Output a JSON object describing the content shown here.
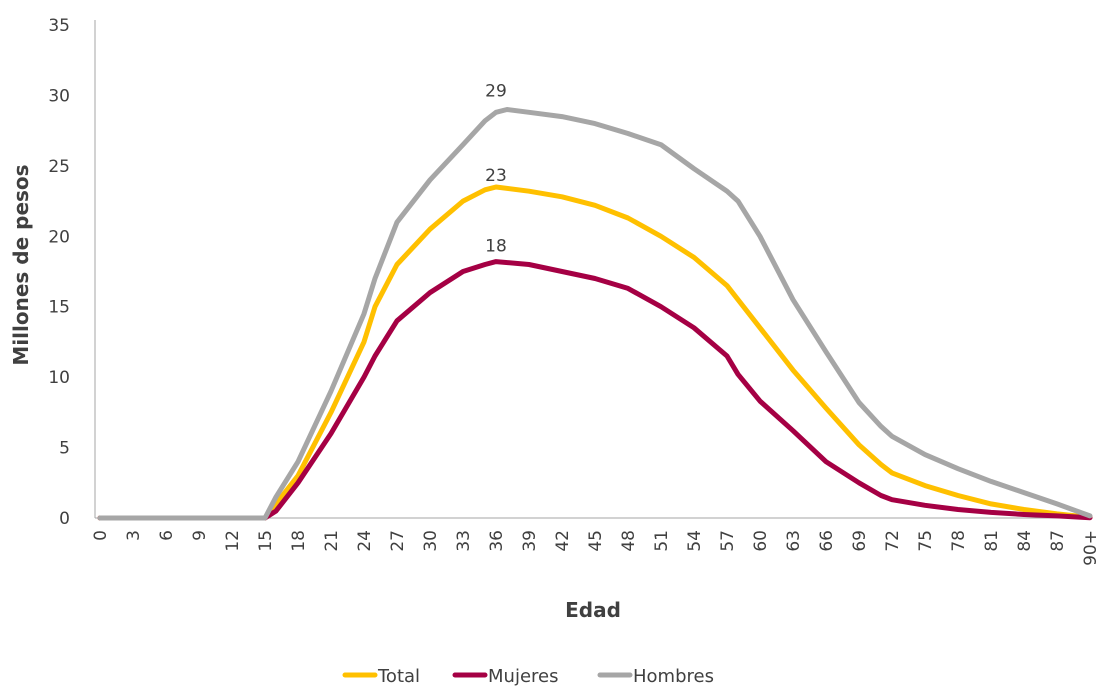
{
  "chart_data": {
    "type": "line",
    "xlabel": "Edad",
    "ylabel": "Millones de pesos",
    "ylim": [
      0,
      35
    ],
    "yticks": [
      0,
      5,
      10,
      15,
      20,
      25,
      30,
      35
    ],
    "grid": false,
    "legend": "bottom",
    "x_tick_labels": [
      "0",
      "3",
      "6",
      "9",
      "12",
      "15",
      "18",
      "21",
      "24",
      "27",
      "30",
      "33",
      "36",
      "39",
      "42",
      "45",
      "48",
      "51",
      "54",
      "57",
      "60",
      "63",
      "66",
      "69",
      "72",
      "75",
      "78",
      "81",
      "84",
      "87",
      "90+"
    ],
    "series": [
      {
        "name": "Total",
        "color": "#ffc000",
        "points": [
          [
            0,
            0
          ],
          [
            3,
            0
          ],
          [
            6,
            0
          ],
          [
            9,
            0
          ],
          [
            12,
            0
          ],
          [
            15,
            0
          ],
          [
            16,
            1
          ],
          [
            18,
            3
          ],
          [
            21,
            7.5
          ],
          [
            24,
            12.5
          ],
          [
            25,
            15
          ],
          [
            27,
            18
          ],
          [
            30,
            20.5
          ],
          [
            33,
            22.5
          ],
          [
            35,
            23.3
          ],
          [
            36,
            23.5
          ],
          [
            39,
            23.2
          ],
          [
            42,
            22.8
          ],
          [
            45,
            22.2
          ],
          [
            48,
            21.3
          ],
          [
            51,
            20
          ],
          [
            54,
            18.5
          ],
          [
            57,
            16.5
          ],
          [
            60,
            13.5
          ],
          [
            63,
            10.5
          ],
          [
            66,
            7.8
          ],
          [
            69,
            5.2
          ],
          [
            71,
            3.8
          ],
          [
            72,
            3.2
          ],
          [
            75,
            2.3
          ],
          [
            78,
            1.6
          ],
          [
            81,
            1.0
          ],
          [
            84,
            0.6
          ],
          [
            87,
            0.3
          ],
          [
            90,
            0.05
          ]
        ]
      },
      {
        "name": "Mujeres",
        "color": "#a50044",
        "points": [
          [
            0,
            0
          ],
          [
            3,
            0
          ],
          [
            6,
            0
          ],
          [
            9,
            0
          ],
          [
            12,
            0
          ],
          [
            15,
            0
          ],
          [
            16,
            0.5
          ],
          [
            18,
            2.5
          ],
          [
            21,
            6
          ],
          [
            24,
            10
          ],
          [
            25,
            11.5
          ],
          [
            27,
            14
          ],
          [
            30,
            16
          ],
          [
            33,
            17.5
          ],
          [
            35,
            18
          ],
          [
            36,
            18.2
          ],
          [
            39,
            18
          ],
          [
            42,
            17.5
          ],
          [
            45,
            17
          ],
          [
            48,
            16.3
          ],
          [
            51,
            15
          ],
          [
            54,
            13.5
          ],
          [
            57,
            11.5
          ],
          [
            58,
            10.2
          ],
          [
            60,
            8.3
          ],
          [
            63,
            6.2
          ],
          [
            66,
            4
          ],
          [
            69,
            2.5
          ],
          [
            71,
            1.6
          ],
          [
            72,
            1.3
          ],
          [
            75,
            0.9
          ],
          [
            78,
            0.6
          ],
          [
            81,
            0.4
          ],
          [
            84,
            0.25
          ],
          [
            87,
            0.15
          ],
          [
            90,
            0.02
          ]
        ]
      },
      {
        "name": "Hombres",
        "color": "#a6a6a6",
        "points": [
          [
            0,
            0
          ],
          [
            3,
            0
          ],
          [
            6,
            0
          ],
          [
            9,
            0
          ],
          [
            12,
            0
          ],
          [
            15,
            0
          ],
          [
            16,
            1.5
          ],
          [
            18,
            4
          ],
          [
            21,
            9
          ],
          [
            24,
            14.5
          ],
          [
            25,
            17
          ],
          [
            27,
            21
          ],
          [
            30,
            24
          ],
          [
            33,
            26.5
          ],
          [
            35,
            28.2
          ],
          [
            36,
            28.8
          ],
          [
            37,
            29
          ],
          [
            39,
            28.8
          ],
          [
            42,
            28.5
          ],
          [
            45,
            28
          ],
          [
            48,
            27.3
          ],
          [
            51,
            26.5
          ],
          [
            54,
            24.8
          ],
          [
            57,
            23.2
          ],
          [
            58,
            22.5
          ],
          [
            60,
            20
          ],
          [
            63,
            15.5
          ],
          [
            66,
            11.8
          ],
          [
            69,
            8.2
          ],
          [
            71,
            6.5
          ],
          [
            72,
            5.8
          ],
          [
            75,
            4.5
          ],
          [
            78,
            3.5
          ],
          [
            81,
            2.6
          ],
          [
            84,
            1.8
          ],
          [
            87,
            1.0
          ],
          [
            90,
            0.15
          ]
        ]
      }
    ],
    "annotations": [
      {
        "x": 36,
        "y": 29,
        "text": "29"
      },
      {
        "x": 36,
        "y": 23,
        "text": "23"
      },
      {
        "x": 36,
        "y": 18,
        "text": "18"
      }
    ]
  }
}
